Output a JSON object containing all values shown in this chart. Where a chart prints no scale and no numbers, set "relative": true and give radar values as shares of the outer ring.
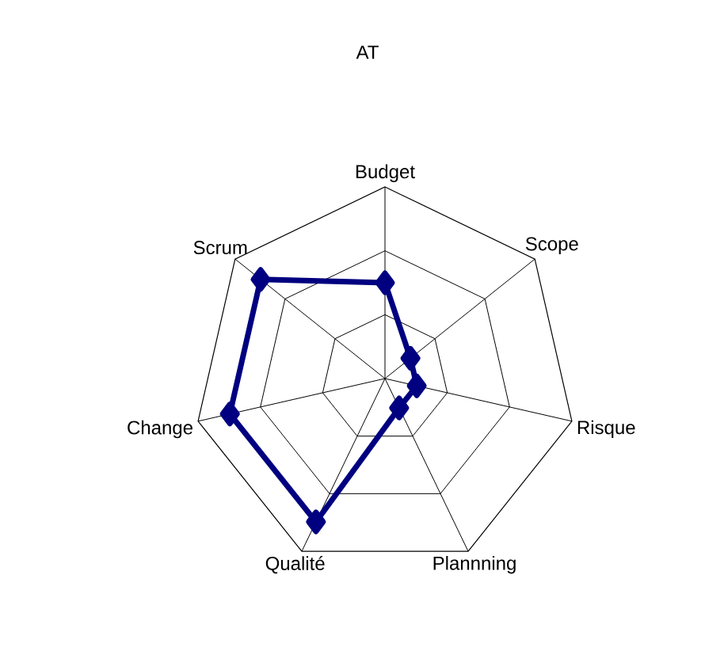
{
  "chart_data": {
    "type": "radar",
    "title": "AT",
    "categories": [
      "Budget",
      "Scope",
      "Risque",
      "Plannning",
      "Qualité",
      "Change",
      "Scrum"
    ],
    "relative": true,
    "grid": true,
    "marker": "diamond",
    "line_style": "solid",
    "series": [
      {
        "color": "#000080",
        "values": [
          0.5,
          0.17,
          0.17,
          0.17,
          0.83,
          0.83,
          0.83
        ]
      }
    ]
  }
}
